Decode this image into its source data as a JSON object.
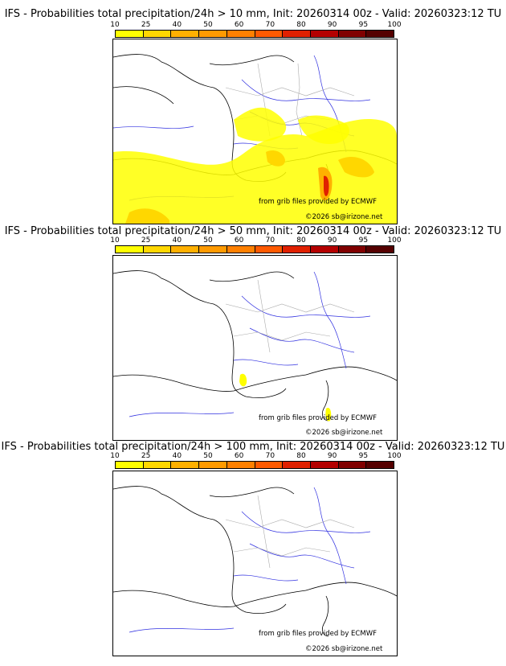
{
  "scale": {
    "labels": [
      "10",
      "25",
      "40",
      "50",
      "60",
      "70",
      "80",
      "90",
      "95",
      "100"
    ],
    "colors": [
      "#ffff00",
      "#ffd700",
      "#ffb000",
      "#ff9a00",
      "#ff8000",
      "#ff5a00",
      "#e02000",
      "#b40000",
      "#800000",
      "#550000"
    ]
  },
  "panels": [
    {
      "title": "IFS - Probabilities total precipitation/24h > 10 mm, Init: 20260314 00z - Valid: 20260323:12 TU",
      "credit_source": "from grib files provided by ECMWF",
      "credit_copyright": "©2026 sb@irizone.net"
    },
    {
      "title": "IFS - Probabilities total precipitation/24h > 50 mm, Init: 20260314 00z - Valid: 20260323:12 TU",
      "credit_source": "from grib files provided by ECMWF",
      "credit_copyright": "©2026 sb@irizone.net"
    },
    {
      "title": "IFS - Probabilities total precipitation/24h > 100 mm, Init: 20260314 00z - Valid: 20260323:12 TU",
      "credit_source": "from grib files provided by ECMWF",
      "credit_copyright": "©2026 sb@irizone.net"
    }
  ]
}
